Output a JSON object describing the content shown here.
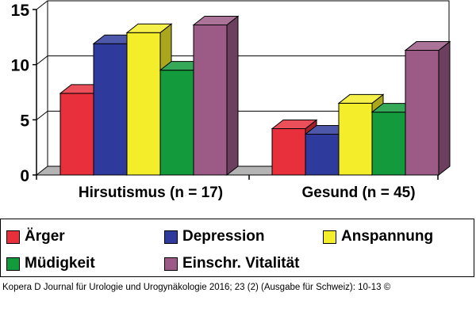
{
  "chart_data": {
    "type": "bar",
    "categories": [
      "Hirsutismus (n = 17)",
      "Gesund (n = 45)"
    ],
    "series": [
      {
        "name": "Ärger",
        "values": [
          7.4,
          4.2
        ]
      },
      {
        "name": "Depression",
        "values": [
          11.9,
          3.7
        ]
      },
      {
        "name": "Anspannung",
        "values": [
          12.9,
          6.5
        ]
      },
      {
        "name": "Müdigkeit",
        "values": [
          9.5,
          5.7
        ]
      },
      {
        "name": "Einschr. Vitalität",
        "values": [
          13.6,
          11.3
        ]
      }
    ],
    "y_ticks": [
      "0",
      "5",
      "10",
      "15"
    ],
    "ylim": [
      0,
      15
    ],
    "grid": true,
    "legend_position": "bottom"
  },
  "colors": {
    "Ärger": "#e8303c",
    "Depression": "#2e3a9c",
    "Anspannung": "#f4ee2a",
    "Müdigkeit": "#129a3c",
    "Einschr. Vitalität": "#9c5a86"
  },
  "source": "Kopera D Journal für Urologie und Urogynäkologie 2016; 23 (2) (Ausgabe für Schweiz): 10-13 ©"
}
